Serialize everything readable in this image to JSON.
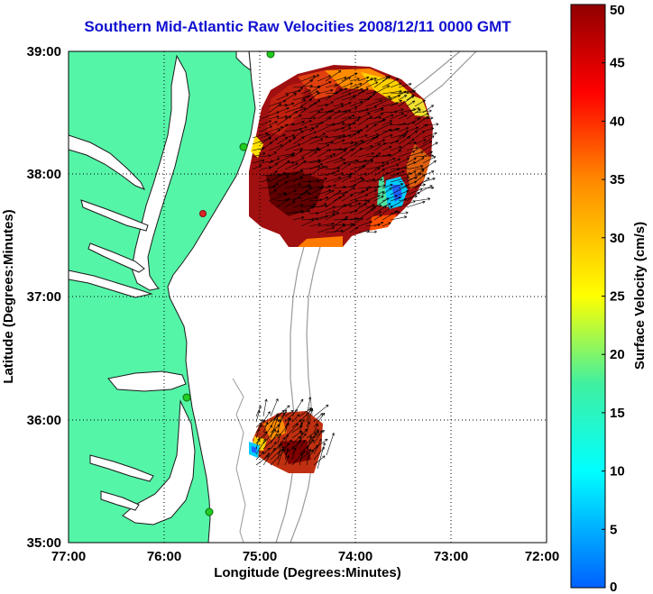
{
  "title": "Southern Mid-Atlantic Raw Velocities 2008/12/11 0000 GMT",
  "xlabel": "Longitude (Degrees:Minutes)",
  "ylabel": "Latitude (Degrees:Minutes)",
  "x_ticks": [
    "77:00",
    "76:00",
    "75:00",
    "74:00",
    "73:00",
    "72:00"
  ],
  "y_ticks": [
    "39:00",
    "38:00",
    "37:00",
    "36:00",
    "35:00"
  ],
  "colorbar": {
    "label": "Surface Velocity (cm/s)",
    "ticks": [
      "0",
      "5",
      "10",
      "15",
      "20",
      "25",
      "30",
      "35",
      "40",
      "45",
      "50"
    ],
    "min": 0,
    "max": 50
  },
  "colors": {
    "land": "#55f5a8",
    "title": "#1010d0",
    "bathymetry": "#9a9a9a",
    "station": "#22cc22",
    "station_alert": "#dd2222"
  },
  "map": {
    "lon_range": [
      -77,
      -72
    ],
    "lat_range": [
      35,
      39
    ],
    "grid": "dotted"
  }
}
